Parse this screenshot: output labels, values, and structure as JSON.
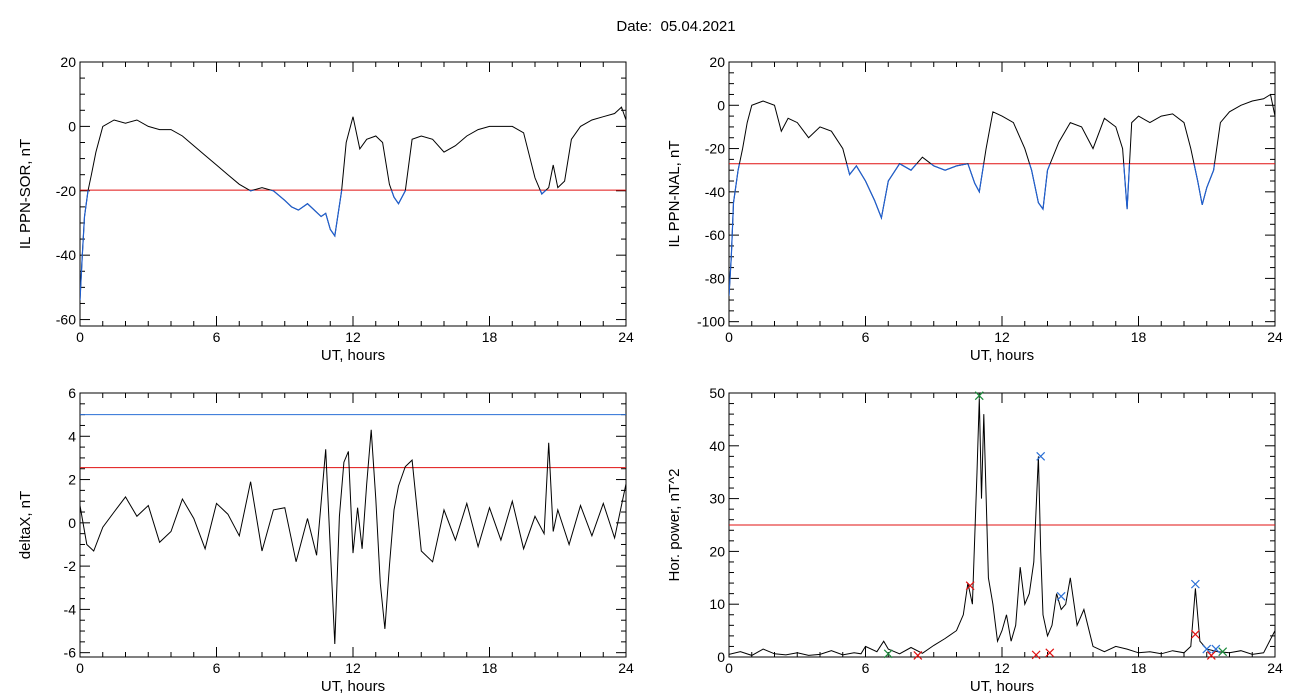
{
  "title": "Date:  05.04.2021",
  "colors": {
    "signal": "#000000",
    "below_threshold": "#1f5fd0",
    "red_level": "#e01010",
    "blue_level": "#2a6fd6",
    "green_marker": "#1a8a3a"
  },
  "chart_data": [
    {
      "type": "line",
      "panel": "top-left",
      "xlabel": "UT, hours",
      "ylabel": "IL PPN-SOR, nT",
      "xlim": [
        0,
        24
      ],
      "ylim": [
        -62,
        20
      ],
      "xticks": [
        "0",
        "6",
        "12",
        "18",
        "24"
      ],
      "yticks": [
        "20",
        "0",
        "-20",
        "-40",
        "-60"
      ],
      "grid": false,
      "threshold": -19.8,
      "x": [
        0,
        0.1,
        0.2,
        0.35,
        0.5,
        0.7,
        1.0,
        1.5,
        2.0,
        2.5,
        3.0,
        3.5,
        4.0,
        4.5,
        5.0,
        5.5,
        6.0,
        6.5,
        7.0,
        7.5,
        8.0,
        8.5,
        9.0,
        9.3,
        9.6,
        10.0,
        10.3,
        10.6,
        10.8,
        11.0,
        11.2,
        11.5,
        11.7,
        12.0,
        12.3,
        12.6,
        13.0,
        13.3,
        13.6,
        13.8,
        14.0,
        14.3,
        14.6,
        15.0,
        15.5,
        16.0,
        16.5,
        17.0,
        17.5,
        18.0,
        18.5,
        19.0,
        19.5,
        20.0,
        20.3,
        20.6,
        20.8,
        21.0,
        21.3,
        21.6,
        22.0,
        22.5,
        23.0,
        23.5,
        23.8,
        24.0
      ],
      "y": [
        -54,
        -40,
        -28,
        -20,
        -15,
        -8,
        0,
        2,
        1,
        2,
        0,
        -1,
        -1,
        -3,
        -6,
        -9,
        -12,
        -15,
        -18,
        -20,
        -19,
        -20,
        -23,
        -25,
        -26,
        -24,
        -26,
        -28,
        -27,
        -32,
        -34,
        -20,
        -5,
        3,
        -7,
        -4,
        -3,
        -5,
        -18,
        -22,
        -24,
        -20,
        -4,
        -3,
        -4,
        -8,
        -6,
        -3,
        -1,
        0,
        0,
        0,
        -2,
        -16,
        -21,
        -19,
        -12,
        -19,
        -17,
        -4,
        0,
        2,
        3,
        4,
        6,
        2
      ]
    },
    {
      "type": "line",
      "panel": "top-right",
      "xlabel": "UT, hours",
      "ylabel": "IL PPN-NAL, nT",
      "xlim": [
        0,
        24
      ],
      "ylim": [
        -102,
        20
      ],
      "xticks": [
        "0",
        "6",
        "12",
        "18",
        "24"
      ],
      "yticks": [
        "20",
        "0",
        "-20",
        "-40",
        "-60",
        "-80",
        "-100"
      ],
      "grid": false,
      "threshold": -27,
      "x": [
        0,
        0.1,
        0.2,
        0.4,
        0.6,
        0.8,
        1.0,
        1.5,
        2.0,
        2.3,
        2.6,
        3.0,
        3.5,
        4.0,
        4.5,
        5.0,
        5.3,
        5.6,
        6.0,
        6.4,
        6.7,
        7.0,
        7.5,
        8.0,
        8.5,
        9.0,
        9.5,
        10.0,
        10.5,
        10.8,
        11.0,
        11.3,
        11.6,
        12.0,
        12.5,
        13.0,
        13.3,
        13.6,
        13.8,
        14.0,
        14.5,
        15.0,
        15.5,
        16.0,
        16.5,
        17.0,
        17.3,
        17.5,
        17.7,
        18.0,
        18.5,
        19.0,
        19.5,
        20.0,
        20.3,
        20.6,
        20.8,
        21.0,
        21.3,
        21.6,
        22.0,
        22.5,
        23.0,
        23.5,
        23.8,
        24.0
      ],
      "y": [
        -88,
        -70,
        -45,
        -30,
        -20,
        -8,
        0,
        2,
        0,
        -12,
        -6,
        -8,
        -15,
        -10,
        -12,
        -20,
        -32,
        -28,
        -35,
        -44,
        -52,
        -35,
        -27,
        -30,
        -24,
        -28,
        -30,
        -28,
        -27,
        -36,
        -40,
        -20,
        -3,
        -5,
        -8,
        -20,
        -30,
        -45,
        -48,
        -30,
        -17,
        -8,
        -10,
        -20,
        -6,
        -10,
        -20,
        -48,
        -8,
        -5,
        -8,
        -5,
        -4,
        -8,
        -20,
        -35,
        -46,
        -38,
        -30,
        -8,
        -3,
        0,
        2,
        3,
        5,
        -5
      ]
    },
    {
      "type": "line",
      "panel": "bottom-left",
      "xlabel": "UT, hours",
      "ylabel": "deltaX, nT",
      "xlim": [
        0,
        24
      ],
      "ylim": [
        -6.2,
        6
      ],
      "xticks": [
        "0",
        "6",
        "12",
        "18",
        "24"
      ],
      "yticks": [
        "6",
        "4",
        "2",
        "0",
        "-2",
        "-4",
        "-6"
      ],
      "grid": false,
      "upper_level_blue": 5.0,
      "upper_level_red": 2.55,
      "x": [
        0,
        0.3,
        0.6,
        1.0,
        1.5,
        2.0,
        2.5,
        3.0,
        3.5,
        4.0,
        4.5,
        5.0,
        5.5,
        6.0,
        6.5,
        7.0,
        7.5,
        8.0,
        8.5,
        9.0,
        9.5,
        10.0,
        10.4,
        10.8,
        11.0,
        11.2,
        11.4,
        11.6,
        11.8,
        12.0,
        12.2,
        12.4,
        12.6,
        12.8,
        13.0,
        13.2,
        13.4,
        13.6,
        13.8,
        14.0,
        14.3,
        14.6,
        15.0,
        15.5,
        16.0,
        16.5,
        17.0,
        17.5,
        18.0,
        18.5,
        19.0,
        19.5,
        20.0,
        20.4,
        20.6,
        20.8,
        21.0,
        21.5,
        22.0,
        22.5,
        23.0,
        23.5,
        24.0
      ],
      "y": [
        0.8,
        -1.0,
        -1.3,
        -0.2,
        0.5,
        1.2,
        0.3,
        0.8,
        -0.9,
        -0.4,
        1.1,
        0.2,
        -1.2,
        0.9,
        0.4,
        -0.6,
        1.9,
        -1.3,
        0.6,
        0.7,
        -1.8,
        0.2,
        -1.5,
        3.4,
        -1.2,
        -5.6,
        0.3,
        2.8,
        3.3,
        -1.4,
        0.7,
        -1.2,
        1.8,
        4.3,
        1.1,
        -2.8,
        -4.9,
        -2.0,
        0.6,
        1.7,
        2.6,
        2.9,
        -1.3,
        -1.8,
        0.6,
        -0.8,
        0.9,
        -1.1,
        0.7,
        -0.8,
        1.0,
        -1.2,
        0.3,
        -0.5,
        3.7,
        -0.4,
        0.6,
        -1.0,
        0.8,
        -0.6,
        0.9,
        -0.7,
        1.8
      ]
    },
    {
      "type": "line",
      "panel": "bottom-right",
      "xlabel": "UT, hours",
      "ylabel": "Hor. power, nT^2",
      "xlim": [
        0,
        24
      ],
      "ylim": [
        0,
        50
      ],
      "xticks": [
        "0",
        "6",
        "12",
        "18",
        "24"
      ],
      "yticks": [
        "50",
        "40",
        "30",
        "20",
        "10",
        "0"
      ],
      "grid": false,
      "threshold": 25,
      "x": [
        0,
        0.5,
        1.0,
        1.5,
        2.0,
        2.5,
        3.0,
        3.5,
        4.0,
        4.5,
        5.0,
        5.5,
        5.8,
        6.0,
        6.5,
        6.8,
        7.0,
        7.5,
        8.0,
        8.5,
        9.0,
        9.5,
        10.0,
        10.3,
        10.5,
        10.7,
        10.9,
        11.0,
        11.1,
        11.2,
        11.4,
        11.6,
        11.8,
        12.0,
        12.2,
        12.4,
        12.6,
        12.8,
        13.0,
        13.2,
        13.4,
        13.6,
        13.7,
        13.8,
        14.0,
        14.2,
        14.4,
        14.6,
        14.8,
        15.0,
        15.3,
        15.6,
        16.0,
        16.5,
        17.0,
        17.5,
        18.0,
        18.5,
        19.0,
        19.5,
        20.0,
        20.3,
        20.5,
        20.7,
        21.0,
        21.5,
        22.0,
        22.5,
        23.0,
        23.5,
        24.0
      ],
      "y": [
        0.5,
        1.0,
        0.3,
        1.5,
        0.6,
        0.4,
        0.8,
        0.3,
        0.5,
        1.2,
        0.4,
        0.8,
        0.6,
        2.0,
        1.0,
        3.0,
        1.5,
        0.6,
        1.8,
        0.7,
        2.2,
        3.5,
        5.0,
        8.0,
        14.0,
        10.0,
        35.0,
        49.0,
        30.0,
        46.0,
        15.0,
        10.0,
        3.0,
        5.0,
        8.0,
        3.0,
        6.0,
        17.0,
        10.0,
        12.0,
        18.0,
        38.0,
        20.0,
        8.0,
        4.0,
        6.0,
        12.0,
        9.0,
        10.0,
        15.0,
        6.0,
        9.0,
        2.0,
        1.0,
        2.0,
        1.5,
        0.8,
        1.0,
        0.6,
        1.2,
        0.8,
        2.0,
        13.0,
        3.0,
        1.5,
        1.0,
        0.8,
        1.2,
        0.5,
        0.8,
        5.0
      ],
      "markers": [
        {
          "x": 10.6,
          "y": 13.5,
          "color": "red"
        },
        {
          "x": 11.0,
          "y": 49.5,
          "color": "green"
        },
        {
          "x": 13.7,
          "y": 38.0,
          "color": "blue"
        },
        {
          "x": 14.6,
          "y": 11.5,
          "color": "blue"
        },
        {
          "x": 20.5,
          "y": 13.8,
          "color": "blue"
        },
        {
          "x": 20.5,
          "y": 4.3,
          "color": "red"
        },
        {
          "x": 7.0,
          "y": 0.6,
          "color": "green"
        },
        {
          "x": 8.3,
          "y": 0.3,
          "color": "red"
        },
        {
          "x": 13.5,
          "y": 0.4,
          "color": "red"
        },
        {
          "x": 14.1,
          "y": 0.8,
          "color": "red"
        },
        {
          "x": 21.0,
          "y": 1.5,
          "color": "blue"
        },
        {
          "x": 21.4,
          "y": 1.5,
          "color": "blue"
        },
        {
          "x": 21.7,
          "y": 1.0,
          "color": "green"
        },
        {
          "x": 21.2,
          "y": 0.3,
          "color": "red"
        }
      ]
    }
  ]
}
